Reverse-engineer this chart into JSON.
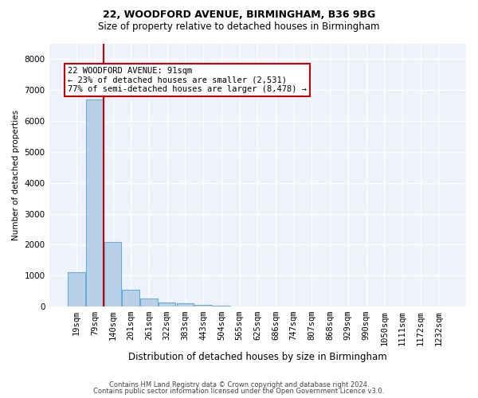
{
  "title1": "22, WOODFORD AVENUE, BIRMINGHAM, B36 9BG",
  "title2": "Size of property relative to detached houses in Birmingham",
  "xlabel": "Distribution of detached houses by size in Birmingham",
  "ylabel": "Number of detached properties",
  "categories": [
    "19sqm",
    "79sqm",
    "140sqm",
    "201sqm",
    "261sqm",
    "322sqm",
    "383sqm",
    "443sqm",
    "504sqm",
    "565sqm",
    "625sqm",
    "686sqm",
    "747sqm",
    "807sqm",
    "868sqm",
    "929sqm",
    "990sqm",
    "1050sqm",
    "1111sqm",
    "1172sqm",
    "1232sqm"
  ],
  "values": [
    1100,
    6700,
    2100,
    550,
    270,
    130,
    100,
    60,
    20,
    10,
    10,
    10,
    10,
    10,
    10,
    10,
    10,
    10,
    10,
    10,
    10
  ],
  "bar_color": "#b8d0e8",
  "bar_edge_color": "#6aaed6",
  "vline_color": "#cc0000",
  "vline_x": 1.48,
  "annotation_text": "22 WOODFORD AVENUE: 91sqm\n← 23% of detached houses are smaller (2,531)\n77% of semi-detached houses are larger (8,478) →",
  "annotation_box_edgecolor": "#cc0000",
  "annotation_fontsize": 7.5,
  "ylim": [
    0,
    8500
  ],
  "yticks": [
    0,
    1000,
    2000,
    3000,
    4000,
    5000,
    6000,
    7000,
    8000
  ],
  "background_color": "#edf2fb",
  "grid_color": "#ffffff",
  "footer1": "Contains HM Land Registry data © Crown copyright and database right 2024.",
  "footer2": "Contains public sector information licensed under the Open Government Licence v3.0.",
  "title1_fontsize": 9,
  "title2_fontsize": 8.5
}
